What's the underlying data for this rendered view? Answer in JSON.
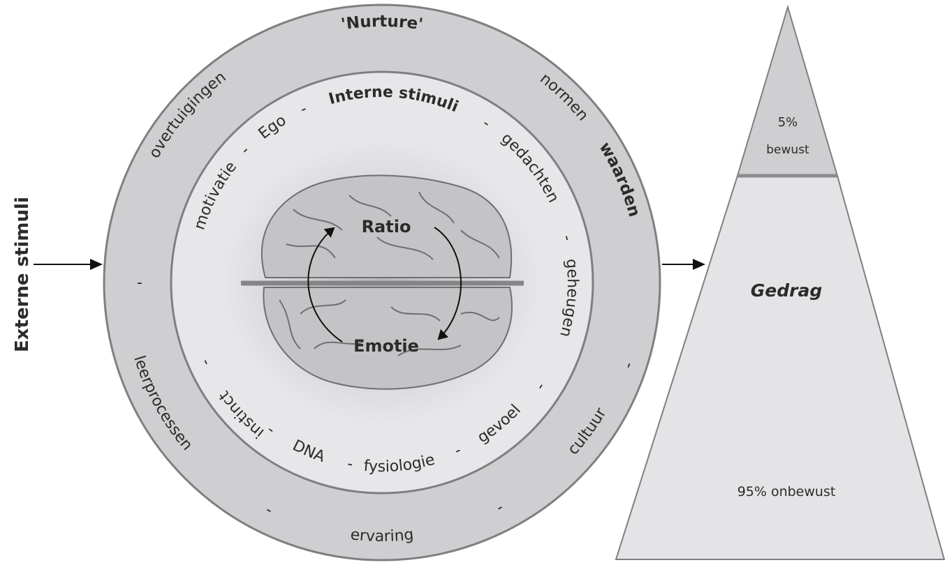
{
  "left_label": "Externe stimuli",
  "outer_ring": {
    "title": "'Nurture'",
    "words": {
      "normen": "normen",
      "waarden": "waarden",
      "cultuur": "cultuur",
      "ervaring": "ervaring",
      "leerprocessen": "leerprocessen",
      "overtuigingen": "overtuigingen"
    },
    "separator": "-"
  },
  "inner_ring": {
    "title": "Interne stimuli",
    "words": {
      "gedachten": "gedachten",
      "geheugen": "geheugen",
      "gevoel": "gevoel",
      "fysiologie": "fysiologie",
      "dna": "DNA",
      "instinct": "instinct",
      "motivatie": "motivatie",
      "ego": "Ego"
    },
    "separator": "-"
  },
  "brain": {
    "top_label": "Ratio",
    "bottom_label": "Emotie"
  },
  "pyramid": {
    "top_percent": "5%",
    "top_label": "bewust",
    "middle_label": "Gedrag",
    "bottom_label": "95% onbewust"
  },
  "colors": {
    "outer_ring": "#cfcfd1",
    "inner_ring": "#e7e7e9",
    "pyramid_top": "#cfcfd1",
    "pyramid_body": "#e4e4e6",
    "outline": "#7f7f81"
  }
}
